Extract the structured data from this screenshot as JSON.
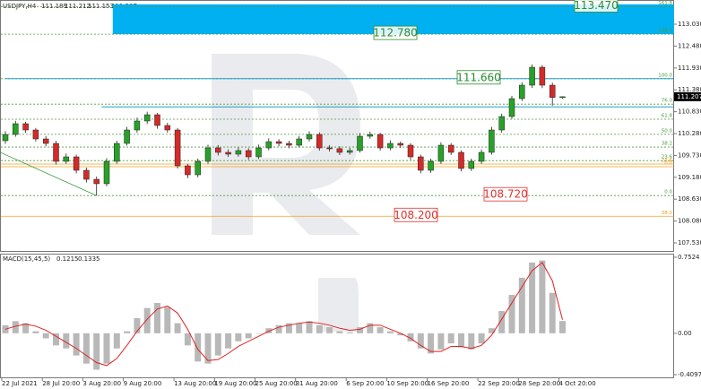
{
  "chart_data": [
    {
      "type": "candlestick",
      "title": "USDJPY,H4",
      "categories": [
        "22 Jul 2021",
        null,
        null,
        null,
        "28 Jul 20:00",
        null,
        null,
        null,
        "3 Aug 20:00",
        null,
        null,
        null,
        "9 Aug 20:00",
        null,
        null,
        null,
        null,
        "13 Aug 20:00",
        null,
        null,
        null,
        "19 Aug 20:00",
        null,
        null,
        null,
        "25 Aug 20:00",
        null,
        null,
        null,
        "31 Aug 20:00",
        null,
        null,
        null,
        null,
        "6 Sep 20:00",
        null,
        null,
        null,
        "10 Sep 20:00",
        null,
        null,
        null,
        "16 Sep 20:00",
        null,
        null,
        null,
        null,
        "22 Sep 20:00",
        null,
        null,
        null,
        "28 Sep 20:00",
        null,
        null,
        null,
        "4 Oct 20:00"
      ],
      "ohlc": [
        [
          110.1,
          110.34,
          110.02,
          110.257
        ],
        [
          110.257,
          110.6,
          110.2,
          110.528
        ],
        [
          110.528,
          110.58,
          110.3,
          110.37
        ],
        [
          110.37,
          110.42,
          110.08,
          110.145
        ],
        [
          110.145,
          110.22,
          109.96,
          110.032
        ],
        [
          110.032,
          110.1,
          109.5,
          109.581
        ],
        [
          109.581,
          109.78,
          109.52,
          109.694
        ],
        [
          109.694,
          109.75,
          109.28,
          109.356
        ],
        [
          109.356,
          109.42,
          109.05,
          109.13
        ],
        [
          109.13,
          109.2,
          108.72,
          109.018
        ],
        [
          109.018,
          109.66,
          108.95,
          109.581
        ],
        [
          109.581,
          110.1,
          109.52,
          110.032
        ],
        [
          110.032,
          110.45,
          109.98,
          110.37
        ],
        [
          110.37,
          110.68,
          110.3,
          110.596
        ],
        [
          110.596,
          110.83,
          110.52,
          110.753
        ],
        [
          110.753,
          110.8,
          110.4,
          110.483
        ],
        [
          110.483,
          110.55,
          110.3,
          110.37
        ],
        [
          110.37,
          110.42,
          109.4,
          109.469
        ],
        [
          109.469,
          109.52,
          109.16,
          109.243
        ],
        [
          109.243,
          109.65,
          109.18,
          109.581
        ],
        [
          109.581,
          110.0,
          109.52,
          109.919
        ],
        [
          109.919,
          109.99,
          109.73,
          109.807
        ],
        [
          109.807,
          109.88,
          109.69,
          109.762
        ],
        [
          109.762,
          109.93,
          109.7,
          109.852
        ],
        [
          109.852,
          109.91,
          109.62,
          109.694
        ],
        [
          109.694,
          110.0,
          109.64,
          109.919
        ],
        [
          109.919,
          110.16,
          109.86,
          110.077
        ],
        [
          110.077,
          110.14,
          109.96,
          110.032
        ],
        [
          110.032,
          110.1,
          109.91,
          109.987
        ],
        [
          109.987,
          110.22,
          109.93,
          110.145
        ],
        [
          110.145,
          110.34,
          110.08,
          110.257
        ],
        [
          110.257,
          110.31,
          109.85,
          109.919
        ],
        [
          109.919,
          109.99,
          109.83,
          109.9
        ],
        [
          109.9,
          109.96,
          109.74,
          109.807
        ],
        [
          109.807,
          109.92,
          109.75,
          109.852
        ],
        [
          109.852,
          110.29,
          109.8,
          110.212
        ],
        [
          110.212,
          110.33,
          110.15,
          110.257
        ],
        [
          110.257,
          110.3,
          109.85,
          109.919
        ],
        [
          109.919,
          110.11,
          109.86,
          110.032
        ],
        [
          110.032,
          110.08,
          109.92,
          109.987
        ],
        [
          109.987,
          110.04,
          109.62,
          109.694
        ],
        [
          109.694,
          109.75,
          109.28,
          109.356
        ],
        [
          109.356,
          109.65,
          109.29,
          109.581
        ],
        [
          109.581,
          110.06,
          109.52,
          109.987
        ],
        [
          109.987,
          110.04,
          109.74,
          109.807
        ],
        [
          109.807,
          109.86,
          109.33,
          109.401
        ],
        [
          109.401,
          109.65,
          109.34,
          109.581
        ],
        [
          109.581,
          109.88,
          109.52,
          109.807
        ],
        [
          109.807,
          110.45,
          109.75,
          110.37
        ],
        [
          110.37,
          110.78,
          110.3,
          110.708
        ],
        [
          110.708,
          111.23,
          110.65,
          111.159
        ],
        [
          111.159,
          111.57,
          111.1,
          111.497
        ],
        [
          111.497,
          112.02,
          111.43,
          111.948
        ],
        [
          111.948,
          112.0,
          111.42,
          111.497
        ],
        [
          111.497,
          111.56,
          110.98,
          111.189
        ],
        [
          111.189,
          111.212,
          111.153,
          111.207
        ]
      ],
      "up_color": "#27a127",
      "down_color": "#d42a2a",
      "ylim": [
        107.327,
        113.639
      ],
      "yticks": [
        {
          "value": 113.03,
          "label": "113.030"
        },
        {
          "value": 112.48,
          "label": "112.480"
        },
        {
          "value": 111.93,
          "label": "111.930"
        },
        {
          "value": 111.38,
          "label": "111.380"
        },
        {
          "value": 110.83,
          "label": "110.830"
        },
        {
          "value": 110.28,
          "label": "110.280"
        },
        {
          "value": 109.73,
          "label": "109.730"
        },
        {
          "value": 109.18,
          "label": "109.180"
        },
        {
          "value": 108.63,
          "label": "108.630"
        },
        {
          "value": 108.08,
          "label": "108.080"
        },
        {
          "value": 107.53,
          "label": "107.530"
        }
      ],
      "zone": {
        "top": 113.53,
        "bottom": 112.78,
        "x_start": 10.6,
        "color": "#00b0f0"
      },
      "levels": [
        {
          "name": "161.8",
          "value": 113.47,
          "color": "#4f9a3f",
          "label": "113.470",
          "label_color": "#2f8a2f"
        },
        {
          "name": "138.2",
          "value": 112.78,
          "color": "#4f9a3f",
          "label": "112.780",
          "label_color": "#2f8a2f"
        },
        {
          "name": "100.0",
          "value": 111.66,
          "color": "#4f9a3f",
          "label": "111.660",
          "label_color": "#2f8a2f"
        },
        {
          "name": "76.0",
          "value": 111.02,
          "color": "#4f9a3f"
        },
        {
          "name": "61.8",
          "value": 110.64,
          "color": "#4f9a3f"
        },
        {
          "name": "50.0",
          "value": 110.26,
          "color": "#4f9a3f"
        },
        {
          "name": "38.2",
          "value": 109.94,
          "color": "#4f9a3f"
        },
        {
          "name": "23.6",
          "value": 109.6,
          "color": "#4f9a3f"
        },
        {
          "name": "23.6",
          "value": 109.513,
          "color": "#f0a020"
        },
        {
          "name": "0.0",
          "value": 109.446,
          "color": "#f0a020"
        },
        {
          "name": "0.0",
          "value": 108.72,
          "color": "#4f9a3f",
          "label": "108.720",
          "label_color": "#e03030"
        },
        {
          "name": "38.2",
          "value": 108.2,
          "color": "#f0a020",
          "label": "108.200",
          "label_color": "#e03030"
        }
      ],
      "hlines": [
        {
          "value": 111.66,
          "start": 0,
          "color": "#1fa0c8"
        },
        {
          "value": 110.95,
          "start": 9.5,
          "color": "#1fa0c8"
        }
      ],
      "trendline": {
        "x": [
          0,
          9
        ],
        "y": [
          109.81,
          108.72
        ],
        "color": "#3a9a3a"
      }
    },
    {
      "type": "macd",
      "title": "MACD(15,45,5)",
      "series": [
        {
          "color": "#b8b8b8",
          "values": [
            0.08,
            0.12,
            0.1,
            0.02,
            -0.05,
            -0.12,
            -0.15,
            -0.22,
            -0.3,
            -0.36,
            -0.3,
            -0.15,
            0.02,
            0.15,
            0.25,
            0.3,
            0.26,
            0.1,
            -0.12,
            -0.28,
            -0.3,
            -0.22,
            -0.15,
            -0.08,
            -0.05,
            0.0,
            0.05,
            0.08,
            0.1,
            0.1,
            0.12,
            0.08,
            0.06,
            0.02,
            0.01,
            0.06,
            0.1,
            0.06,
            0.02,
            -0.02,
            -0.08,
            -0.15,
            -0.2,
            -0.16,
            -0.1,
            -0.14,
            -0.16,
            -0.1,
            0.05,
            0.22,
            0.38,
            0.55,
            0.7,
            0.72,
            0.4,
            0.1215
          ]
        },
        {
          "color": "#e02020",
          "values": [
            0.04,
            0.07,
            0.09,
            0.07,
            0.03,
            -0.03,
            -0.09,
            -0.15,
            -0.22,
            -0.29,
            -0.32,
            -0.25,
            -0.12,
            0.02,
            0.14,
            0.24,
            0.27,
            0.2,
            0.04,
            -0.16,
            -0.27,
            -0.26,
            -0.2,
            -0.13,
            -0.08,
            -0.03,
            0.02,
            0.06,
            0.08,
            0.1,
            0.11,
            0.1,
            0.08,
            0.05,
            0.03,
            0.04,
            0.08,
            0.08,
            0.04,
            0.0,
            -0.05,
            -0.12,
            -0.18,
            -0.18,
            -0.13,
            -0.13,
            -0.15,
            -0.12,
            -0.02,
            0.14,
            0.3,
            0.46,
            0.62,
            0.7,
            0.52,
            0.1335
          ]
        }
      ],
      "ylim": [
        -0.445,
        0.788
      ],
      "yticks": [
        0.7524,
        {
          "value": 0,
          "label": "0.00"
        },
        -0.4097
      ]
    }
  ]
}
